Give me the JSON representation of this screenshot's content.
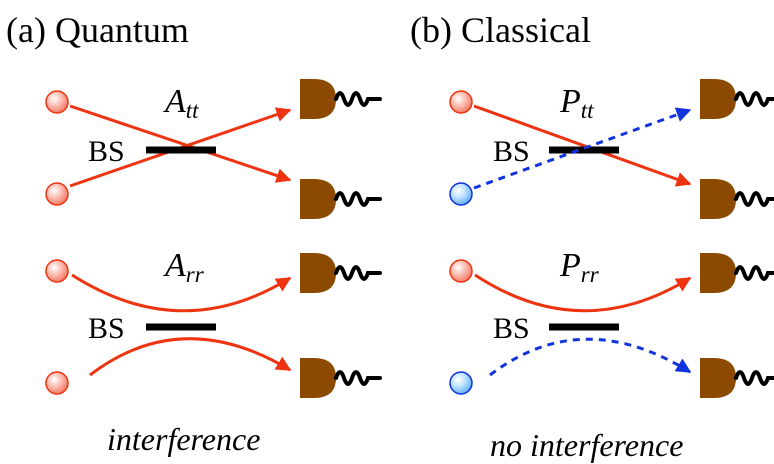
{
  "colors": {
    "quantum_particle": "#ee3311",
    "classical_particle_blue": "#1133dd",
    "path_red": "#ee3311",
    "path_blue": "#1133dd",
    "detector": "#8b4a00",
    "beam_splitter": "#000000"
  },
  "panels": [
    {
      "id": "a",
      "title": "(a)  Quantum",
      "top_process": {
        "symbol": "A",
        "subscript": "tt"
      },
      "bottom_process": {
        "symbol": "A",
        "subscript": "rr"
      },
      "beam_splitter_label": "BS",
      "caption": "interference",
      "second_particle_color": "red",
      "dashed_path": false
    },
    {
      "id": "b",
      "title": "(b)  Classical",
      "top_process": {
        "symbol": "P",
        "subscript": "tt"
      },
      "bottom_process": {
        "symbol": "P",
        "subscript": "rr"
      },
      "beam_splitter_label": "BS",
      "caption": "no interference",
      "second_particle_color": "blue",
      "dashed_path": true
    }
  ]
}
